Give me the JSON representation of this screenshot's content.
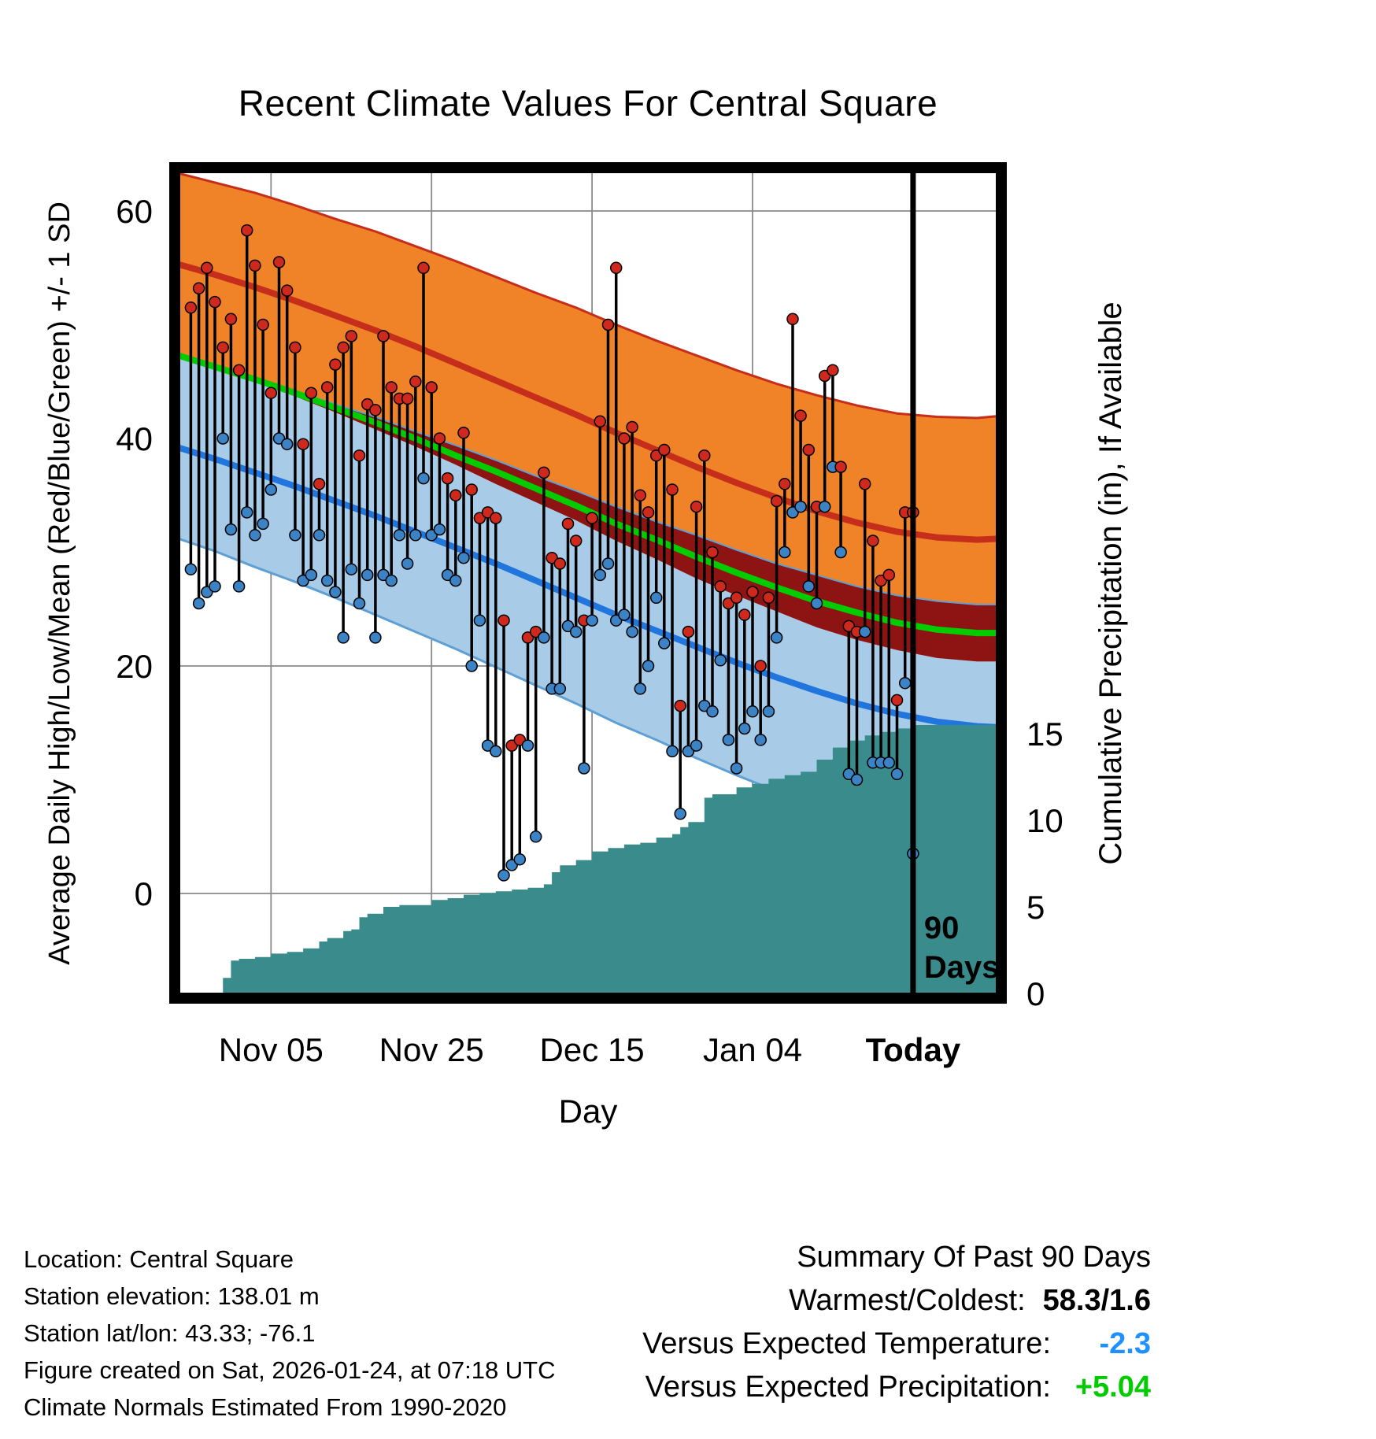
{
  "title": "Recent Climate Values For Central Square",
  "footer_left": {
    "lines": [
      "Location: Central Square",
      "Station elevation: 138.01 m",
      "Station lat/lon: 43.33; -76.1",
      "Figure created on Sat, 2026-01-24, at 07:18 UTC",
      "Climate Normals Estimated From 1990-2020"
    ]
  },
  "summary": {
    "heading": "Summary Of Past 90 Days",
    "rows": [
      {
        "label": "Warmest/Coldest:",
        "value": "58.3/1.6",
        "color": "#000000"
      },
      {
        "label": "Versus Expected Temperature:",
        "value": "-2.3",
        "color": "#1E90FF"
      },
      {
        "label": "Versus Expected Precipitation:",
        "value": "+5.04",
        "color": "#00CC00"
      }
    ]
  },
  "chart_data": {
    "type": "line",
    "title": "Recent Climate Values For Central Square",
    "x_axis": {
      "label": "Day",
      "ticks": [
        {
          "d": 12,
          "label": "Nov 05"
        },
        {
          "d": 32,
          "label": "Nov 25"
        },
        {
          "d": 52,
          "label": "Dec 15"
        },
        {
          "d": 72,
          "label": "Jan 04"
        },
        {
          "d": 92,
          "label": "Today",
          "bold": true
        }
      ]
    },
    "y_left": {
      "label": "Average Daily High/Low/Mean (Red/Blue/Green) +/- 1 SD",
      "ticks": [
        {
          "v": 0,
          "label": "0"
        },
        {
          "v": 20,
          "label": "20"
        },
        {
          "v": 40,
          "label": "40"
        },
        {
          "v": 60,
          "label": "60"
        }
      ],
      "range": [
        -9.2,
        63.8
      ]
    },
    "y_right": {
      "label": "Cumulative Precipitation (in), If Available",
      "ticks": [
        {
          "v": 0,
          "label": "0"
        },
        {
          "v": 5,
          "label": "5"
        },
        {
          "v": 10,
          "label": "10"
        },
        {
          "v": 15,
          "label": "15"
        }
      ],
      "range": [
        0,
        23.8
      ]
    },
    "marker": {
      "d": 92,
      "labels": [
        "90",
        "Days"
      ]
    },
    "normals": {
      "days": [
        0,
        5,
        10,
        15,
        20,
        25,
        30,
        35,
        40,
        45,
        50,
        55,
        60,
        65,
        70,
        75,
        80,
        85,
        90,
        95,
        100,
        103
      ],
      "high_upper": [
        63.4,
        62.5,
        61.6,
        60.5,
        59.3,
        58.2,
        56.9,
        55.6,
        54.2,
        52.8,
        51.5,
        50.0,
        48.6,
        47.3,
        46.0,
        44.8,
        43.8,
        42.9,
        42.2,
        41.9,
        41.8,
        42.0
      ],
      "high_mean": [
        55.4,
        54.4,
        53.3,
        52.1,
        50.8,
        49.5,
        48.1,
        46.6,
        45.1,
        43.6,
        42.1,
        40.5,
        39.0,
        37.5,
        36.1,
        34.8,
        33.6,
        32.6,
        31.8,
        31.3,
        31.1,
        31.2
      ],
      "high_lower": [
        47.4,
        46.3,
        45.0,
        43.7,
        42.3,
        40.8,
        39.3,
        37.7,
        36.0,
        34.4,
        32.8,
        31.0,
        29.4,
        27.7,
        26.2,
        24.8,
        23.4,
        22.3,
        21.4,
        20.7,
        20.4,
        20.4
      ],
      "mean": [
        47.4,
        46.3,
        45.2,
        44.0,
        42.7,
        41.4,
        40.0,
        38.5,
        37.1,
        35.6,
        34.1,
        32.5,
        31.1,
        29.6,
        28.2,
        26.9,
        25.7,
        24.7,
        23.8,
        23.2,
        22.9,
        22.9
      ],
      "low_upper": [
        47.3,
        46.3,
        45.3,
        44.2,
        43.0,
        41.9,
        40.6,
        39.4,
        38.1,
        36.7,
        35.4,
        34.0,
        32.7,
        31.5,
        30.2,
        29.0,
        28.0,
        27.0,
        26.2,
        25.7,
        25.4,
        25.4
      ],
      "low_mean": [
        39.3,
        38.2,
        37.0,
        35.8,
        34.5,
        33.2,
        31.8,
        30.4,
        29.0,
        27.5,
        26.0,
        24.5,
        23.1,
        21.7,
        20.3,
        19.0,
        17.8,
        16.7,
        15.8,
        15.1,
        14.7,
        14.6
      ],
      "low_lower": [
        31.3,
        30.1,
        28.7,
        27.4,
        26.0,
        24.5,
        23.0,
        21.5,
        19.9,
        18.3,
        16.7,
        15.0,
        13.5,
        11.9,
        10.4,
        9.0,
        7.6,
        6.4,
        5.4,
        4.5,
        4.0,
        3.8
      ]
    },
    "observations": [
      {
        "d": 2,
        "hi": 51.5,
        "lo": 28.5
      },
      {
        "d": 3,
        "hi": 53.2,
        "lo": 25.5
      },
      {
        "d": 4,
        "hi": 55.0,
        "lo": 26.5
      },
      {
        "d": 5,
        "hi": 52.0,
        "lo": 27.0
      },
      {
        "d": 6,
        "hi": 48.0,
        "lo": 40.0
      },
      {
        "d": 7,
        "hi": 50.5,
        "lo": 32.0
      },
      {
        "d": 8,
        "hi": 46.0,
        "lo": 27.0
      },
      {
        "d": 9,
        "hi": 58.3,
        "lo": 33.5
      },
      {
        "d": 10,
        "hi": 55.2,
        "lo": 31.5
      },
      {
        "d": 11,
        "hi": 50.0,
        "lo": 32.5
      },
      {
        "d": 12,
        "hi": 44.0,
        "lo": 35.5
      },
      {
        "d": 13,
        "hi": 55.5,
        "lo": 40.0
      },
      {
        "d": 14,
        "hi": 53.0,
        "lo": 39.5
      },
      {
        "d": 15,
        "hi": 48.0,
        "lo": 31.5
      },
      {
        "d": 16,
        "hi": 39.5,
        "lo": 27.5
      },
      {
        "d": 17,
        "hi": 44.0,
        "lo": 28.0
      },
      {
        "d": 18,
        "hi": 36.0,
        "lo": 31.5
      },
      {
        "d": 19,
        "hi": 44.5,
        "lo": 27.5
      },
      {
        "d": 20,
        "hi": 46.5,
        "lo": 26.5
      },
      {
        "d": 21,
        "hi": 48.0,
        "lo": 22.5
      },
      {
        "d": 22,
        "hi": 49.0,
        "lo": 28.5
      },
      {
        "d": 23,
        "hi": 38.5,
        "lo": 25.5
      },
      {
        "d": 24,
        "hi": 43.0,
        "lo": 28.0
      },
      {
        "d": 25,
        "hi": 42.5,
        "lo": 22.5
      },
      {
        "d": 26,
        "hi": 49.0,
        "lo": 28.0
      },
      {
        "d": 27,
        "hi": 44.5,
        "lo": 27.5
      },
      {
        "d": 28,
        "hi": 43.5,
        "lo": 31.5
      },
      {
        "d": 29,
        "hi": 43.5,
        "lo": 29.0
      },
      {
        "d": 30,
        "hi": 45.0,
        "lo": 31.5
      },
      {
        "d": 31,
        "hi": 55.0,
        "lo": 36.5
      },
      {
        "d": 32,
        "hi": 44.5,
        "lo": 31.5
      },
      {
        "d": 33,
        "hi": 40.0,
        "lo": 32.0
      },
      {
        "d": 34,
        "hi": 36.5,
        "lo": 28.0
      },
      {
        "d": 35,
        "hi": 35.0,
        "lo": 27.5
      },
      {
        "d": 36,
        "hi": 40.5,
        "lo": 29.5
      },
      {
        "d": 37,
        "hi": 35.5,
        "lo": 20.0
      },
      {
        "d": 38,
        "hi": 33.0,
        "lo": 24.0
      },
      {
        "d": 39,
        "hi": 33.5,
        "lo": 13.0
      },
      {
        "d": 40,
        "hi": 33.0,
        "lo": 12.5
      },
      {
        "d": 41,
        "hi": 24.0,
        "lo": 1.6
      },
      {
        "d": 42,
        "hi": 13.0,
        "lo": 2.5
      },
      {
        "d": 43,
        "hi": 13.5,
        "lo": 3.0
      },
      {
        "d": 44,
        "hi": 22.5,
        "lo": 13.0
      },
      {
        "d": 45,
        "hi": 23.0,
        "lo": 5.0
      },
      {
        "d": 46,
        "hi": 37.0,
        "lo": 22.5
      },
      {
        "d": 47,
        "hi": 29.5,
        "lo": 18.0
      },
      {
        "d": 48,
        "hi": 29.0,
        "lo": 18.0
      },
      {
        "d": 49,
        "hi": 32.5,
        "lo": 23.5
      },
      {
        "d": 50,
        "hi": 31.0,
        "lo": 23.0
      },
      {
        "d": 51,
        "hi": 24.0,
        "lo": 11.0
      },
      {
        "d": 52,
        "hi": 33.0,
        "lo": 24.0
      },
      {
        "d": 53,
        "hi": 41.5,
        "lo": 28.0
      },
      {
        "d": 54,
        "hi": 50.0,
        "lo": 29.0
      },
      {
        "d": 55,
        "hi": 55.0,
        "lo": 24.0
      },
      {
        "d": 56,
        "hi": 40.0,
        "lo": 24.5
      },
      {
        "d": 57,
        "hi": 41.0,
        "lo": 23.0
      },
      {
        "d": 58,
        "hi": 35.0,
        "lo": 18.0
      },
      {
        "d": 59,
        "hi": 33.5,
        "lo": 20.0
      },
      {
        "d": 60,
        "hi": 38.5,
        "lo": 26.0
      },
      {
        "d": 61,
        "hi": 39.0,
        "lo": 22.0
      },
      {
        "d": 62,
        "hi": 35.5,
        "lo": 12.5
      },
      {
        "d": 63,
        "hi": 16.5,
        "lo": 7.0
      },
      {
        "d": 64,
        "hi": 23.0,
        "lo": 12.5
      },
      {
        "d": 65,
        "hi": 34.0,
        "lo": 13.0
      },
      {
        "d": 66,
        "hi": 38.5,
        "lo": 16.5
      },
      {
        "d": 67,
        "hi": 30.0,
        "lo": 16.0
      },
      {
        "d": 68,
        "hi": 27.0,
        "lo": 20.5
      },
      {
        "d": 69,
        "hi": 25.5,
        "lo": 13.5
      },
      {
        "d": 70,
        "hi": 26.0,
        "lo": 11.0
      },
      {
        "d": 71,
        "hi": 24.5,
        "lo": 14.5
      },
      {
        "d": 72,
        "hi": 26.5,
        "lo": 16.0
      },
      {
        "d": 73,
        "hi": 20.0,
        "lo": 13.5
      },
      {
        "d": 74,
        "hi": 26.0,
        "lo": 16.0
      },
      {
        "d": 75,
        "hi": 34.5,
        "lo": 22.5
      },
      {
        "d": 76,
        "hi": 36.0,
        "lo": 30.0
      },
      {
        "d": 77,
        "hi": 50.5,
        "lo": 33.5
      },
      {
        "d": 78,
        "hi": 42.0,
        "lo": 34.0
      },
      {
        "d": 79,
        "hi": 39.0,
        "lo": 27.0
      },
      {
        "d": 80,
        "hi": 34.0,
        "lo": 25.5
      },
      {
        "d": 81,
        "hi": 45.5,
        "lo": 34.0
      },
      {
        "d": 82,
        "hi": 46.0,
        "lo": 37.5
      },
      {
        "d": 83,
        "hi": 37.5,
        "lo": 30.0
      },
      {
        "d": 84,
        "hi": 23.5,
        "lo": 10.5
      },
      {
        "d": 85,
        "hi": 23.0,
        "lo": 10.0
      },
      {
        "d": 86,
        "hi": 36.0,
        "lo": 23.0
      },
      {
        "d": 87,
        "hi": 31.0,
        "lo": 11.5
      },
      {
        "d": 88,
        "hi": 27.5,
        "lo": 11.5
      },
      {
        "d": 89,
        "hi": 28.0,
        "lo": 11.5
      },
      {
        "d": 90,
        "hi": 17.0,
        "lo": 10.5
      },
      {
        "d": 91,
        "hi": 33.5,
        "lo": 18.5
      },
      {
        "d": 92,
        "hi": 33.5,
        "lo": 3.5
      }
    ],
    "precip": {
      "days": [
        5,
        6,
        7,
        8,
        10,
        12,
        14,
        16,
        18,
        19,
        21,
        22,
        23,
        24,
        26,
        28,
        32,
        34,
        36,
        38,
        40,
        42,
        44,
        46,
        47,
        48,
        50,
        52,
        54,
        56,
        58,
        60,
        62,
        63,
        64,
        66,
        67,
        70,
        72,
        74,
        76,
        78,
        80,
        82,
        84,
        86,
        88,
        90,
        92,
        103
      ],
      "values": [
        0,
        0.9,
        1.9,
        2.0,
        2.1,
        2.3,
        2.4,
        2.6,
        3.0,
        3.2,
        3.6,
        3.7,
        4.4,
        4.6,
        5.0,
        5.1,
        5.4,
        5.5,
        5.7,
        5.8,
        5.9,
        6.0,
        6.1,
        6.3,
        7.0,
        7.4,
        7.7,
        8.2,
        8.4,
        8.6,
        8.7,
        9.0,
        9.2,
        9.6,
        9.9,
        11.3,
        11.5,
        11.9,
        12.1,
        12.4,
        12.6,
        12.8,
        13.5,
        14.2,
        14.6,
        14.9,
        15.1,
        15.3,
        15.5,
        15.6
      ]
    },
    "colors": {
      "high_band": "#F08228",
      "overlap_band": "#8E1414",
      "low_band": "#A8CBE8",
      "high_line": "#C62E1C",
      "low_line": "#2176DE",
      "mean_line": "#00CC00",
      "precip_fill": "#3A8C8C",
      "high_dot": "#CF281C",
      "low_dot": "#3B83C4",
      "obs_line": "#000000",
      "grid": "#8A8A8A",
      "band_edge_high": "#C62E1C",
      "band_edge_low": "#5E9FD4"
    }
  }
}
